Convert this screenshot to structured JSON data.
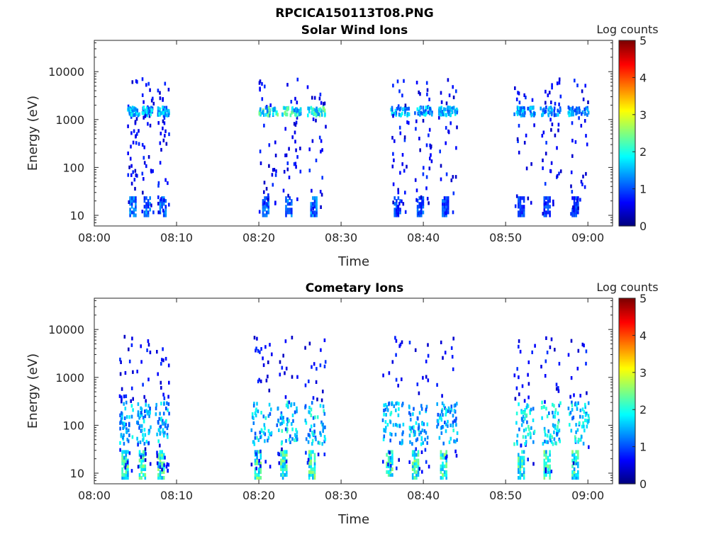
{
  "figure_title": "RPCICA150113T08.PNG",
  "chart_data": [
    {
      "type": "heatmap",
      "title": "Solar Wind Ions",
      "xlabel": "Time",
      "ylabel": "Energy (eV)",
      "x_scale": "time",
      "y_scale": "log",
      "xlim": [
        "08:00",
        "09:03"
      ],
      "ylim": [
        6,
        45000
      ],
      "x_ticks": [
        "08:00",
        "08:10",
        "08:20",
        "08:30",
        "08:40",
        "08:50",
        "09:00"
      ],
      "y_ticks": [
        "10",
        "100",
        "1000",
        "10000"
      ],
      "colorbar": {
        "label": "Log counts",
        "ticks": [
          "0",
          "1",
          "2",
          "3",
          "4",
          "5"
        ],
        "range": [
          0,
          5
        ],
        "colormap": "jet"
      },
      "sweeps": [
        {
          "start": "08:04",
          "end": "08:09",
          "ion_band_ev": [
            1200,
            1800
          ],
          "ion_peak_log": 2.0,
          "low_band_ev": [
            10,
            25
          ],
          "low_peak_log": 1.5
        },
        {
          "start": "08:20",
          "end": "08:28",
          "ion_band_ev": [
            1200,
            1800
          ],
          "ion_peak_log": 2.6,
          "low_band_ev": [
            10,
            25
          ],
          "low_peak_log": 1.5
        },
        {
          "start": "08:36",
          "end": "08:44",
          "ion_band_ev": [
            1200,
            1800
          ],
          "ion_peak_log": 2.0,
          "low_band_ev": [
            10,
            25
          ],
          "low_peak_log": 1.3
        },
        {
          "start": "08:51",
          "end": "09:00",
          "ion_band_ev": [
            1200,
            1800
          ],
          "ion_peak_log": 1.9,
          "low_band_ev": [
            10,
            25
          ],
          "low_peak_log": 1.2
        }
      ]
    },
    {
      "type": "heatmap",
      "title": "Cometary Ions",
      "xlabel": "Time",
      "ylabel": "Energy (eV)",
      "x_scale": "time",
      "y_scale": "log",
      "xlim": [
        "08:00",
        "09:03"
      ],
      "ylim": [
        6,
        45000
      ],
      "x_ticks": [
        "08:00",
        "08:10",
        "08:20",
        "08:30",
        "08:40",
        "08:50",
        "09:00"
      ],
      "y_ticks": [
        "10",
        "100",
        "1000",
        "10000"
      ],
      "colorbar": {
        "label": "Log counts",
        "ticks": [
          "0",
          "1",
          "2",
          "3",
          "4",
          "5"
        ],
        "range": [
          0,
          5
        ],
        "colormap": "jet"
      },
      "sweeps": [
        {
          "start": "08:03",
          "end": "08:09",
          "ion_band_ev": [
            40,
            300
          ],
          "ion_peak_log": 2.0,
          "low_band_ev": [
            8,
            30
          ],
          "low_peak_log": 2.7
        },
        {
          "start": "08:19",
          "end": "08:28",
          "ion_band_ev": [
            40,
            300
          ],
          "ion_peak_log": 2.2,
          "low_band_ev": [
            8,
            30
          ],
          "low_peak_log": 2.7
        },
        {
          "start": "08:35",
          "end": "08:44",
          "ion_band_ev": [
            40,
            300
          ],
          "ion_peak_log": 2.1,
          "low_band_ev": [
            8,
            30
          ],
          "low_peak_log": 2.7
        },
        {
          "start": "08:51",
          "end": "09:00",
          "ion_band_ev": [
            40,
            300
          ],
          "ion_peak_log": 2.3,
          "low_band_ev": [
            8,
            30
          ],
          "low_peak_log": 2.6
        }
      ]
    }
  ]
}
